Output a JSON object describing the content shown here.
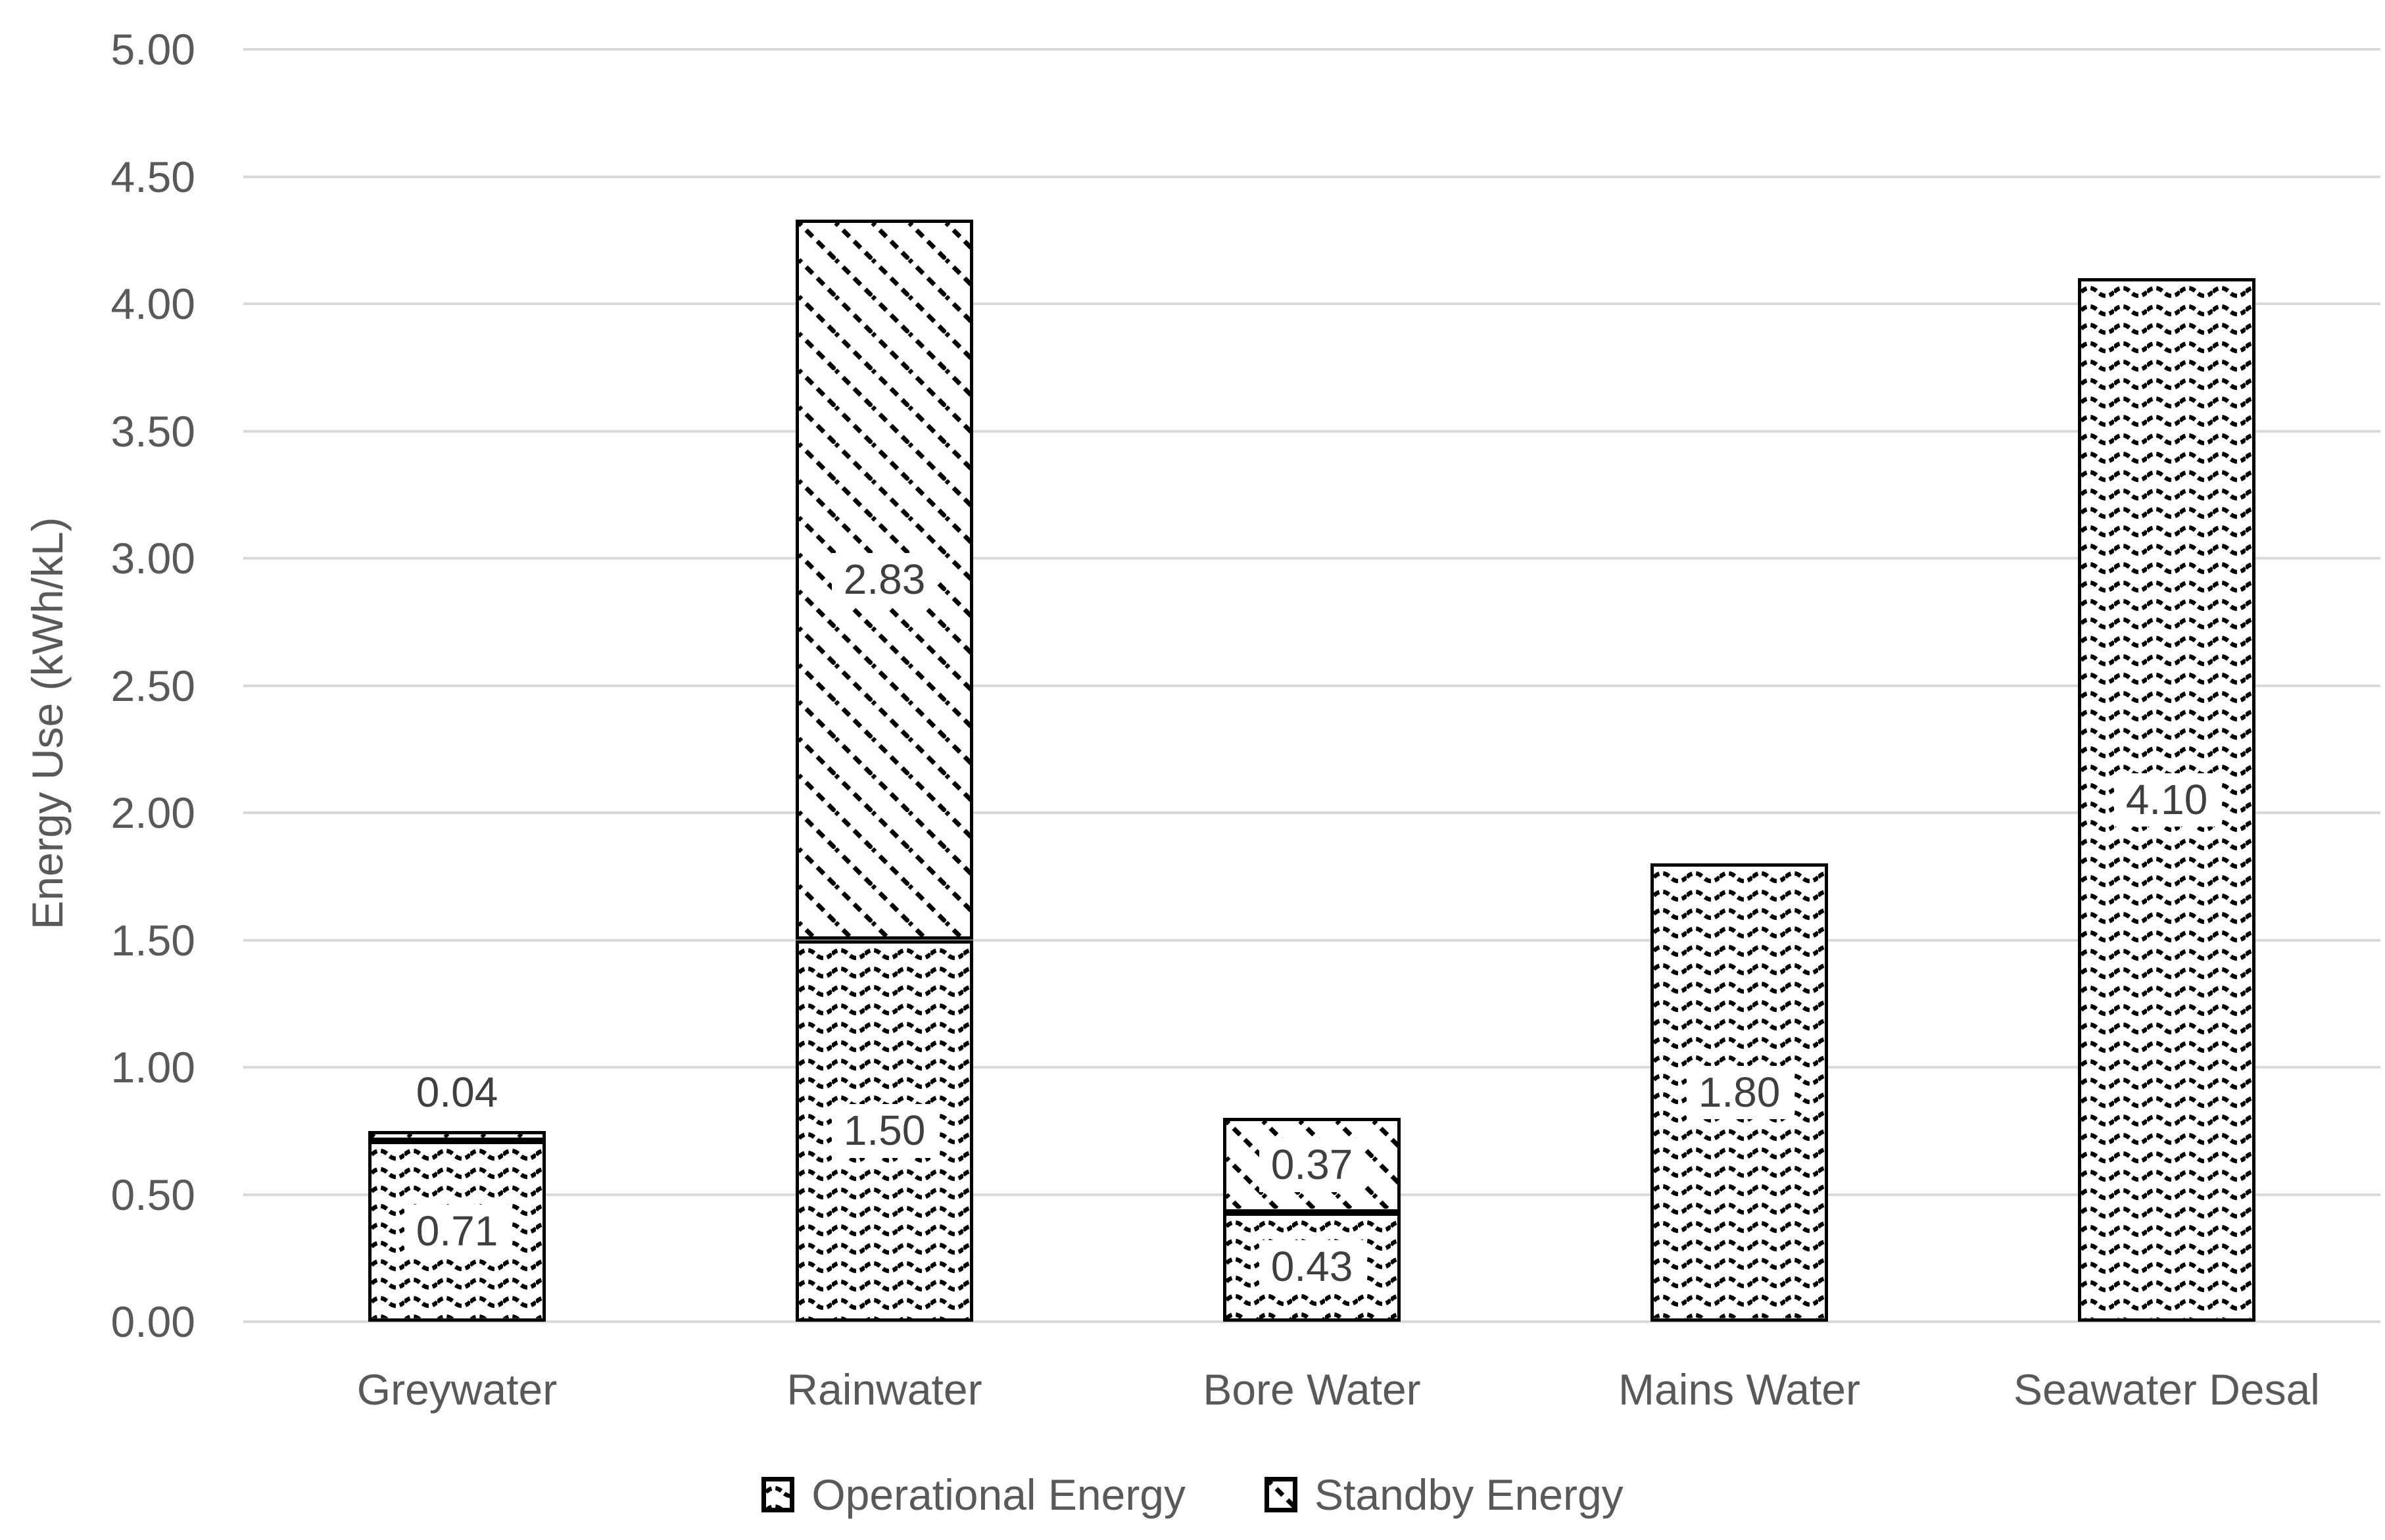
{
  "chart_data": {
    "type": "bar",
    "stacked": true,
    "categories": [
      "Greywater",
      "Rainwater",
      "Bore Water",
      "Mains Water",
      "Seawater Desal"
    ],
    "series": [
      {
        "name": "Operational Energy",
        "pattern": "wave",
        "values": [
          0.71,
          1.5,
          0.43,
          1.8,
          4.1
        ],
        "data_labels": [
          "0.71",
          "1.50",
          "0.43",
          "1.80",
          "4.10"
        ]
      },
      {
        "name": "Standby Energy",
        "pattern": "diagonal",
        "values": [
          0.04,
          2.83,
          0.37,
          0,
          0
        ],
        "data_labels": [
          "0.04",
          "2.83",
          "0.37",
          "",
          ""
        ]
      }
    ],
    "totals": [
      0.75,
      4.33,
      0.8,
      1.8,
      4.1
    ],
    "ylabel": "Energy Use (kWh/kL)",
    "ylim": [
      0,
      5
    ],
    "ytick_step": 0.5,
    "yticks": [
      "0.00",
      "0.50",
      "1.00",
      "1.50",
      "2.00",
      "2.50",
      "3.00",
      "3.50",
      "4.00",
      "4.50",
      "5.00"
    ],
    "grid": true,
    "legend_position": "bottom",
    "colors": {
      "pattern_stroke": "#000000",
      "segment_fill": "#ffffff",
      "segment_border": "#000000",
      "gridline": "#d9d9d9",
      "axis_text": "#595959",
      "data_label_text": "#3f3f3f",
      "background": "#ffffff"
    }
  }
}
